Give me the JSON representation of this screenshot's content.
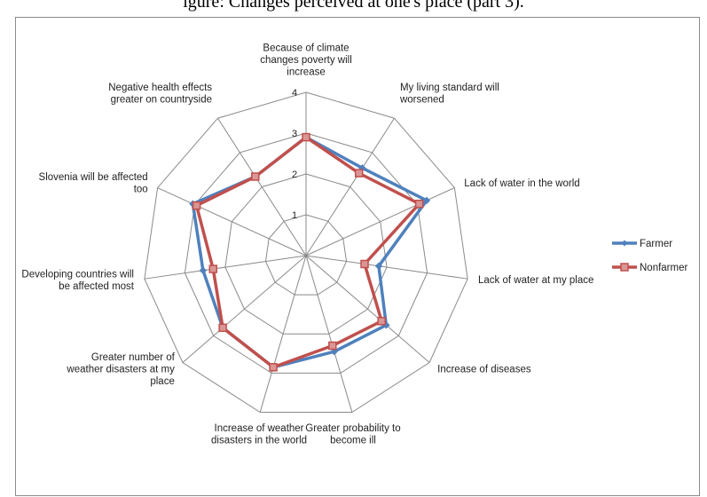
{
  "caption": "igure: Changes perceived at one's place (part 3).",
  "chart_data": {
    "type": "radar",
    "title": "",
    "axes": [
      "Because of climate changes poverty will increase",
      "My living standard will worsened",
      "Lack of water in the world",
      "Lack of water at my place",
      "Increase of diseases",
      "Greater probability to become ill",
      "Increase of weather disasters in the world",
      "Greater number of weather disasters at my place",
      "Developing countries will be affected most",
      "Slovenia will be affected too",
      "Negative health effects greater on countryside"
    ],
    "axis_label_lines": [
      [
        "Because of climate",
        "changes poverty will",
        "increase"
      ],
      [
        "My living standard will",
        "worsened"
      ],
      [
        "Lack of water in the world"
      ],
      [
        "Lack of water at my place"
      ],
      [
        "Increase of diseases"
      ],
      [
        "Greater probability to",
        "become ill"
      ],
      [
        "Increase of weather",
        "disasters in the world"
      ],
      [
        "Greater number of",
        "weather disasters at my",
        "place"
      ],
      [
        "Developing countries will",
        "be affected most"
      ],
      [
        "Slovenia will be affected",
        "too"
      ],
      [
        "Negative health effects",
        "greater on countryside"
      ]
    ],
    "rmin": 0,
    "rmax": 4,
    "ticks": [
      1,
      2,
      3,
      4
    ],
    "series": [
      {
        "name": "Farmer",
        "color": "#4f81bd",
        "marker": "diamond",
        "values": [
          2.9,
          2.55,
          3.25,
          1.8,
          2.6,
          2.45,
          2.85,
          2.7,
          2.55,
          3.05,
          2.3
        ]
      },
      {
        "name": "Nonfarmer",
        "color": "#c0504d",
        "marker": "square",
        "values": [
          2.9,
          2.4,
          3.05,
          1.45,
          2.45,
          2.3,
          2.85,
          2.7,
          2.3,
          2.95,
          2.3
        ]
      }
    ],
    "legend_position": "right"
  }
}
